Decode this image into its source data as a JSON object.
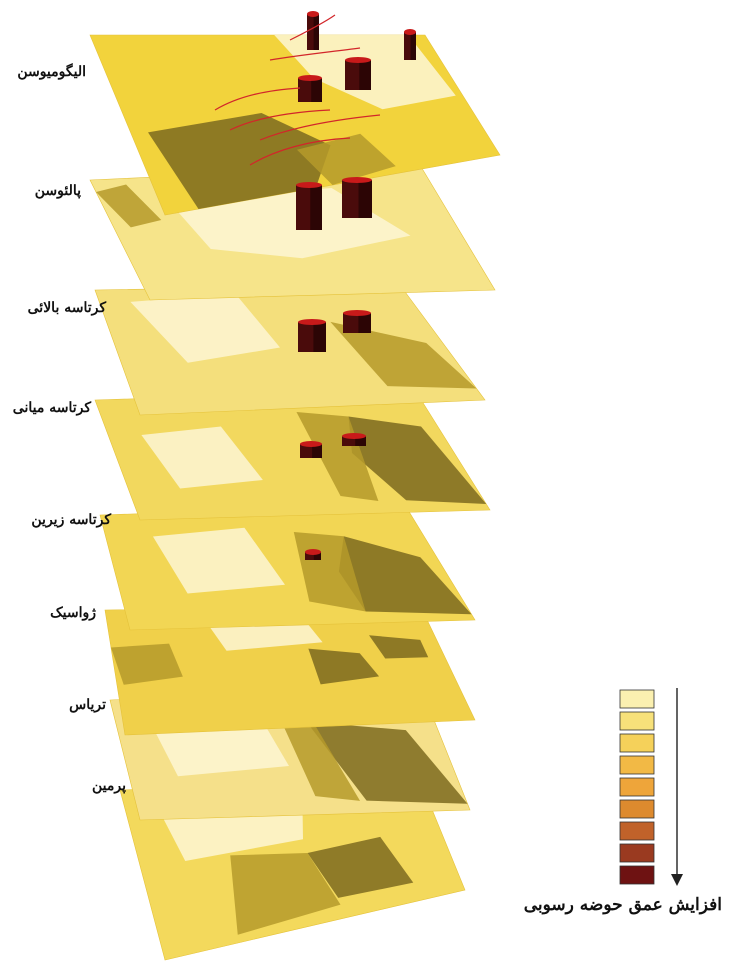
{
  "layers": [
    {
      "label": "الیگومیوسن",
      "fill": "#f2d33c"
    },
    {
      "label": "پالئوسن",
      "fill": "#f6e48a"
    },
    {
      "label": "کرتاسه بالائی",
      "fill": "#f4df7c"
    },
    {
      "label": "کرتاسه میانی",
      "fill": "#f2d85e"
    },
    {
      "label": "کرتاسه زیرین",
      "fill": "#f2d654"
    },
    {
      "label": "ژواسیک",
      "fill": "#f0d04a"
    },
    {
      "label": "تریاس",
      "fill": "#f5e08a"
    },
    {
      "label": "پرمین",
      "fill": "#f3d95c"
    }
  ],
  "legend": {
    "caption": "افزایش عمق حوضه رسوبی",
    "arrow_icon": "arrow-down-icon",
    "swatches": [
      "#fbf0b0",
      "#f7e17a",
      "#f5d15a",
      "#f2b945",
      "#eea53a",
      "#dd8a2e",
      "#c0622a",
      "#9a3a20",
      "#6e1212"
    ]
  },
  "colors": {
    "dark_zone": "#7d6a1e",
    "mid_zone": "#b59a2a",
    "light_zone": "#fdf6d4",
    "bar_top": "#c81a1a",
    "bar_side": "#4a0b0b",
    "fault_lines": "#d2262a"
  }
}
